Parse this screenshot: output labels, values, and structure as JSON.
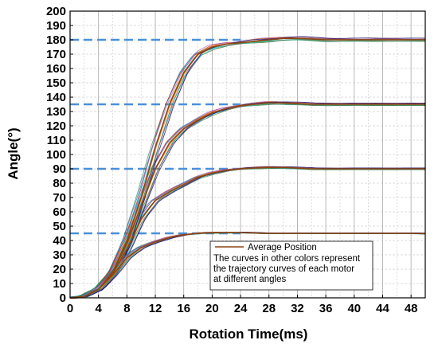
{
  "chart_data": {
    "type": "line",
    "xlabel": "Rotation Time(ms)",
    "ylabel": "Angle(°)",
    "xlim": [
      0,
      50
    ],
    "ylim": [
      0,
      200
    ],
    "xticks": [
      "0",
      "4",
      "8",
      "12",
      "16",
      "20",
      "24",
      "28",
      "32",
      "36",
      "40",
      "44",
      "48"
    ],
    "yticks": [
      "0",
      "10",
      "20",
      "30",
      "40",
      "50",
      "60",
      "70",
      "80",
      "90",
      "100",
      "110",
      "120",
      "130",
      "140",
      "150",
      "160",
      "170",
      "180",
      "190",
      "200"
    ],
    "grid": true,
    "reference_lines": [
      45,
      90,
      135,
      180
    ],
    "reference_line_color": "#4a90d9",
    "series": [
      {
        "name": "Average Position",
        "color": "#8b4513",
        "x": [
          0,
          2,
          4,
          6,
          8,
          10,
          12,
          14,
          16,
          18,
          20,
          22,
          24,
          26,
          28,
          30,
          32,
          34,
          36,
          38,
          40,
          42,
          44,
          46,
          48,
          50
        ],
        "values": [
          0,
          1,
          6,
          16,
          28,
          35,
          39,
          42,
          44,
          45,
          45.5,
          45.5,
          45.5,
          45.2,
          45,
          45,
          45,
          45,
          45,
          45,
          45,
          45,
          45,
          45,
          45,
          44.8
        ]
      },
      {
        "x": [
          0,
          2,
          4,
          6,
          8,
          10,
          12,
          14,
          16,
          18,
          20,
          22,
          24,
          26,
          28,
          30,
          32,
          34,
          36,
          38,
          40,
          42,
          44,
          46,
          48,
          50
        ],
        "values": [
          0,
          1,
          6,
          17,
          34,
          55,
          68,
          74,
          79,
          84,
          87,
          89,
          90,
          90.5,
          91,
          91,
          90.5,
          90,
          90,
          90,
          90,
          90,
          90,
          90,
          90,
          90
        ]
      },
      {
        "x": [
          0,
          2,
          4,
          6,
          8,
          10,
          12,
          14,
          16,
          18,
          20,
          22,
          24,
          26,
          28,
          30,
          32,
          34,
          36,
          38,
          40,
          42,
          44,
          46,
          48,
          50
        ],
        "values": [
          0,
          1,
          6,
          18,
          38,
          64,
          90,
          108,
          118,
          124,
          129,
          132,
          134,
          135,
          136,
          136,
          135.5,
          135,
          135,
          135,
          135,
          135,
          135,
          135,
          135,
          135
        ]
      },
      {
        "x": [
          0,
          2,
          4,
          6,
          8,
          10,
          12,
          14,
          16,
          18,
          20,
          22,
          24,
          26,
          28,
          30,
          32,
          34,
          36,
          38,
          40,
          42,
          44,
          46,
          48,
          50
        ],
        "values": [
          0,
          1,
          6,
          18,
          40,
          70,
          105,
          135,
          157,
          170,
          175,
          177,
          178,
          179,
          180,
          181,
          181,
          180.5,
          180,
          180,
          180,
          180,
          180,
          180,
          180,
          180
        ]
      }
    ],
    "legend": {
      "position": "bottom-right",
      "entries": [
        "Average Position"
      ],
      "note": "The curves in other colors represent the trajectory curves of each motor at different angles"
    }
  }
}
